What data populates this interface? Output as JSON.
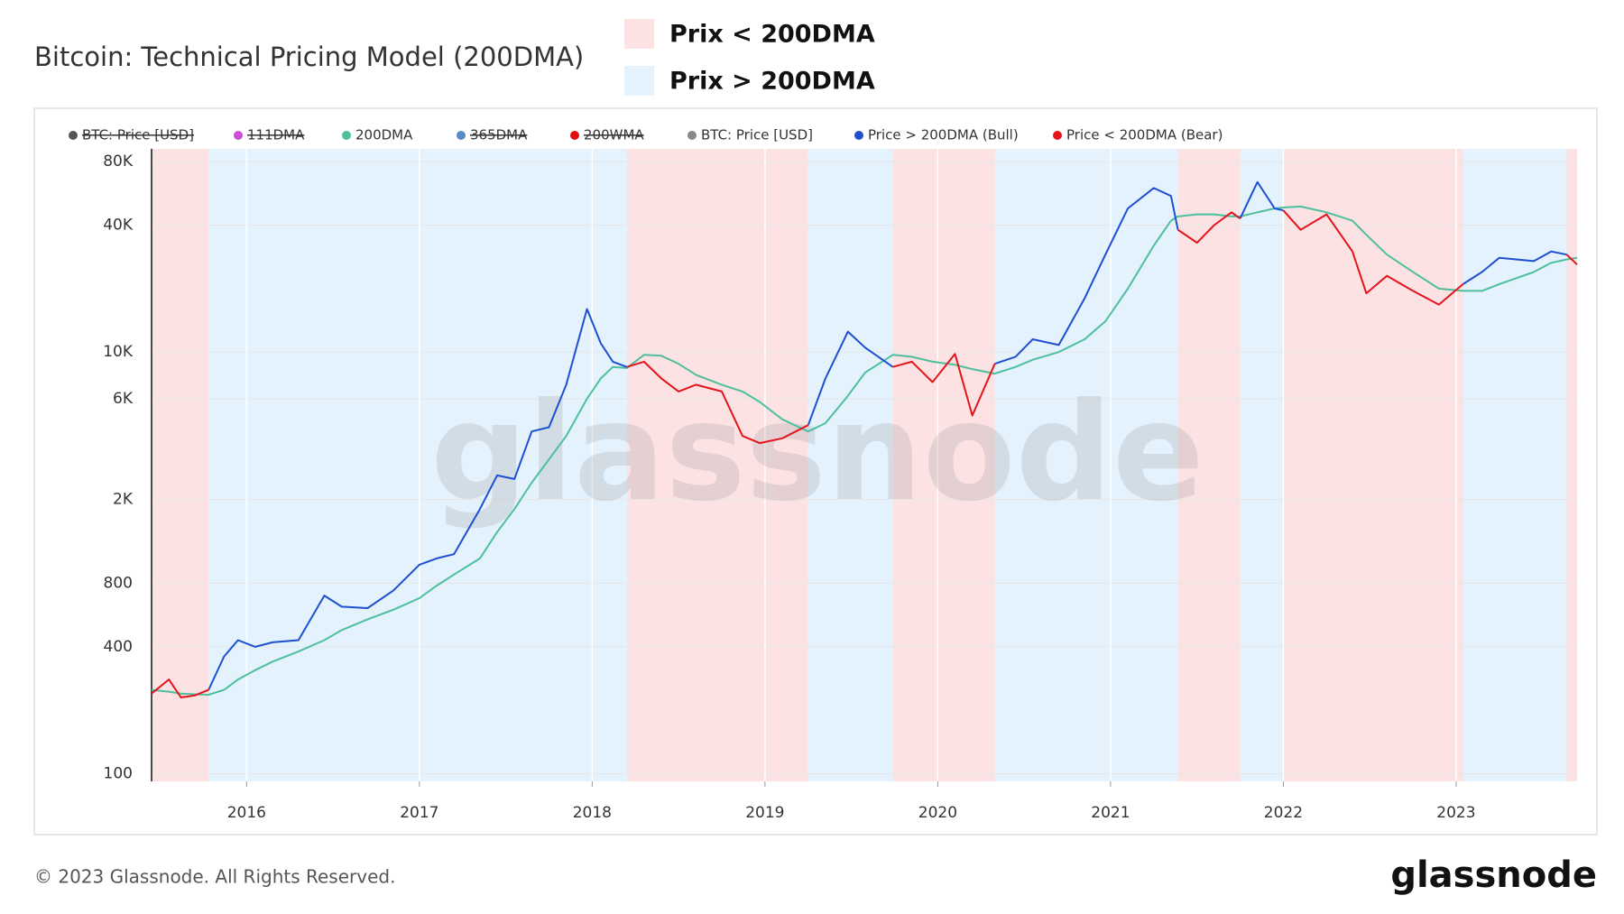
{
  "chart_data": {
    "type": "line",
    "title": "Bitcoin: Technical Pricing Model (200DMA)",
    "regions": [
      {
        "name": "Prix < 200DMA",
        "color": "#fde2e4",
        "spans": [
          [
            2015.45,
            2015.78
          ],
          [
            2018.2,
            2019.25
          ],
          [
            2019.74,
            2020.33
          ],
          [
            2021.39,
            2021.75
          ],
          [
            2022.0,
            2023.04
          ],
          [
            2023.64,
            2023.7
          ]
        ]
      },
      {
        "name": "Prix > 200DMA",
        "color": "#e3f2fd",
        "spans": [
          [
            2015.78,
            2018.2
          ],
          [
            2019.25,
            2019.74
          ],
          [
            2020.33,
            2021.39
          ],
          [
            2021.75,
            2022.0
          ],
          [
            2023.04,
            2023.64
          ]
        ]
      }
    ],
    "x": [
      2015.45,
      2015.55,
      2015.62,
      2015.7,
      2015.78,
      2015.87,
      2015.95,
      2016.05,
      2016.15,
      2016.3,
      2016.45,
      2016.55,
      2016.7,
      2016.85,
      2017.0,
      2017.1,
      2017.2,
      2017.35,
      2017.45,
      2017.55,
      2017.65,
      2017.75,
      2017.85,
      2017.97,
      2018.05,
      2018.12,
      2018.2,
      2018.3,
      2018.4,
      2018.5,
      2018.6,
      2018.75,
      2018.87,
      2018.97,
      2019.1,
      2019.25,
      2019.35,
      2019.48,
      2019.58,
      2019.74,
      2019.85,
      2019.97,
      2020.1,
      2020.2,
      2020.33,
      2020.45,
      2020.55,
      2020.7,
      2020.85,
      2020.97,
      2021.1,
      2021.25,
      2021.35,
      2021.39,
      2021.5,
      2021.6,
      2021.7,
      2021.75,
      2021.85,
      2021.95,
      2022.0,
      2022.1,
      2022.25,
      2022.4,
      2022.48,
      2022.6,
      2022.75,
      2022.9,
      2023.04,
      2023.15,
      2023.25,
      2023.45,
      2023.55,
      2023.64,
      2023.7
    ],
    "series": [
      {
        "name": "BTC: Price [USD]",
        "color": "#555555",
        "hidden": true
      },
      {
        "name": "111DMA",
        "color": "#c94fd6",
        "hidden": true
      },
      {
        "name": "200DMA",
        "color": "#4dbf9c",
        "values": [
          250,
          245,
          240,
          238,
          237,
          250,
          280,
          310,
          340,
          380,
          430,
          480,
          540,
          600,
          680,
          780,
          880,
          1050,
          1400,
          1800,
          2400,
          3100,
          4000,
          6000,
          7500,
          8500,
          8400,
          9700,
          9600,
          8800,
          7800,
          7000,
          6500,
          5800,
          4800,
          4200,
          4600,
          6200,
          8000,
          9700,
          9500,
          9000,
          8700,
          8300,
          7900,
          8500,
          9200,
          10000,
          11500,
          14000,
          20000,
          32000,
          42000,
          44000,
          45000,
          45000,
          44000,
          44000,
          46000,
          48000,
          48500,
          49000,
          46000,
          42000,
          36000,
          29000,
          24000,
          20000,
          19500,
          19500,
          21000,
          24000,
          26500,
          27500,
          28000
        ]
      },
      {
        "name": "365DMA",
        "color": "#5a8ac6",
        "hidden": true
      },
      {
        "name": "200WMA",
        "color": "#e01010",
        "hidden": true
      },
      {
        "name": "BTC: Price [USD]",
        "color": "#888888"
      },
      {
        "name": "Price > 200DMA (Bull)",
        "color": "#1f4fd1",
        "values": [
          null,
          null,
          null,
          null,
          250,
          360,
          430,
          400,
          420,
          430,
          700,
          620,
          610,
          740,
          980,
          1050,
          1100,
          1800,
          2600,
          2500,
          4200,
          4400,
          7000,
          16000,
          11000,
          9000,
          8500,
          null,
          null,
          null,
          null,
          null,
          null,
          null,
          null,
          4500,
          7500,
          12500,
          10500,
          8500,
          null,
          null,
          null,
          null,
          8800,
          9500,
          11500,
          10800,
          18000,
          29000,
          48000,
          60000,
          55000,
          38000,
          null,
          null,
          null,
          43000,
          64000,
          48000,
          47000,
          null,
          null,
          null,
          null,
          null,
          null,
          null,
          21000,
          24000,
          28000,
          27000,
          30000,
          29000,
          null
        ]
      },
      {
        "name": "Price < 200DMA (Bear)",
        "color": "#e3141c",
        "values": [
          240,
          280,
          230,
          235,
          250,
          null,
          null,
          null,
          null,
          null,
          null,
          null,
          null,
          null,
          null,
          null,
          null,
          null,
          null,
          null,
          null,
          null,
          null,
          null,
          null,
          null,
          8500,
          9000,
          7500,
          6500,
          7000,
          6500,
          4000,
          3700,
          3900,
          4500,
          null,
          null,
          null,
          8500,
          9000,
          7200,
          9800,
          5000,
          8800,
          null,
          null,
          null,
          null,
          null,
          null,
          null,
          null,
          38000,
          33000,
          40000,
          46000,
          43000,
          null,
          null,
          47000,
          38000,
          45000,
          30000,
          19000,
          23000,
          19500,
          16800,
          21000,
          null,
          null,
          null,
          null,
          29000,
          26000
        ]
      }
    ],
    "xlim": [
      2015.45,
      2023.7
    ],
    "xticks": [
      2016,
      2017,
      2018,
      2019,
      2020,
      2021,
      2022,
      2023
    ],
    "ylim": [
      92,
      92000
    ],
    "yticks": [
      100,
      400,
      800,
      {
        "value": 2000,
        "label": "2K"
      },
      {
        "value": 6000,
        "label": "6K"
      },
      {
        "value": 10000,
        "label": "10K"
      },
      {
        "value": 40000,
        "label": "40K"
      },
      {
        "value": 80000,
        "label": "80K"
      }
    ],
    "log_y": true,
    "grid": true,
    "watermark": "glassnode",
    "footer": "© 2023 Glassnode. All Rights Reserved.",
    "brand": "glassnode"
  }
}
